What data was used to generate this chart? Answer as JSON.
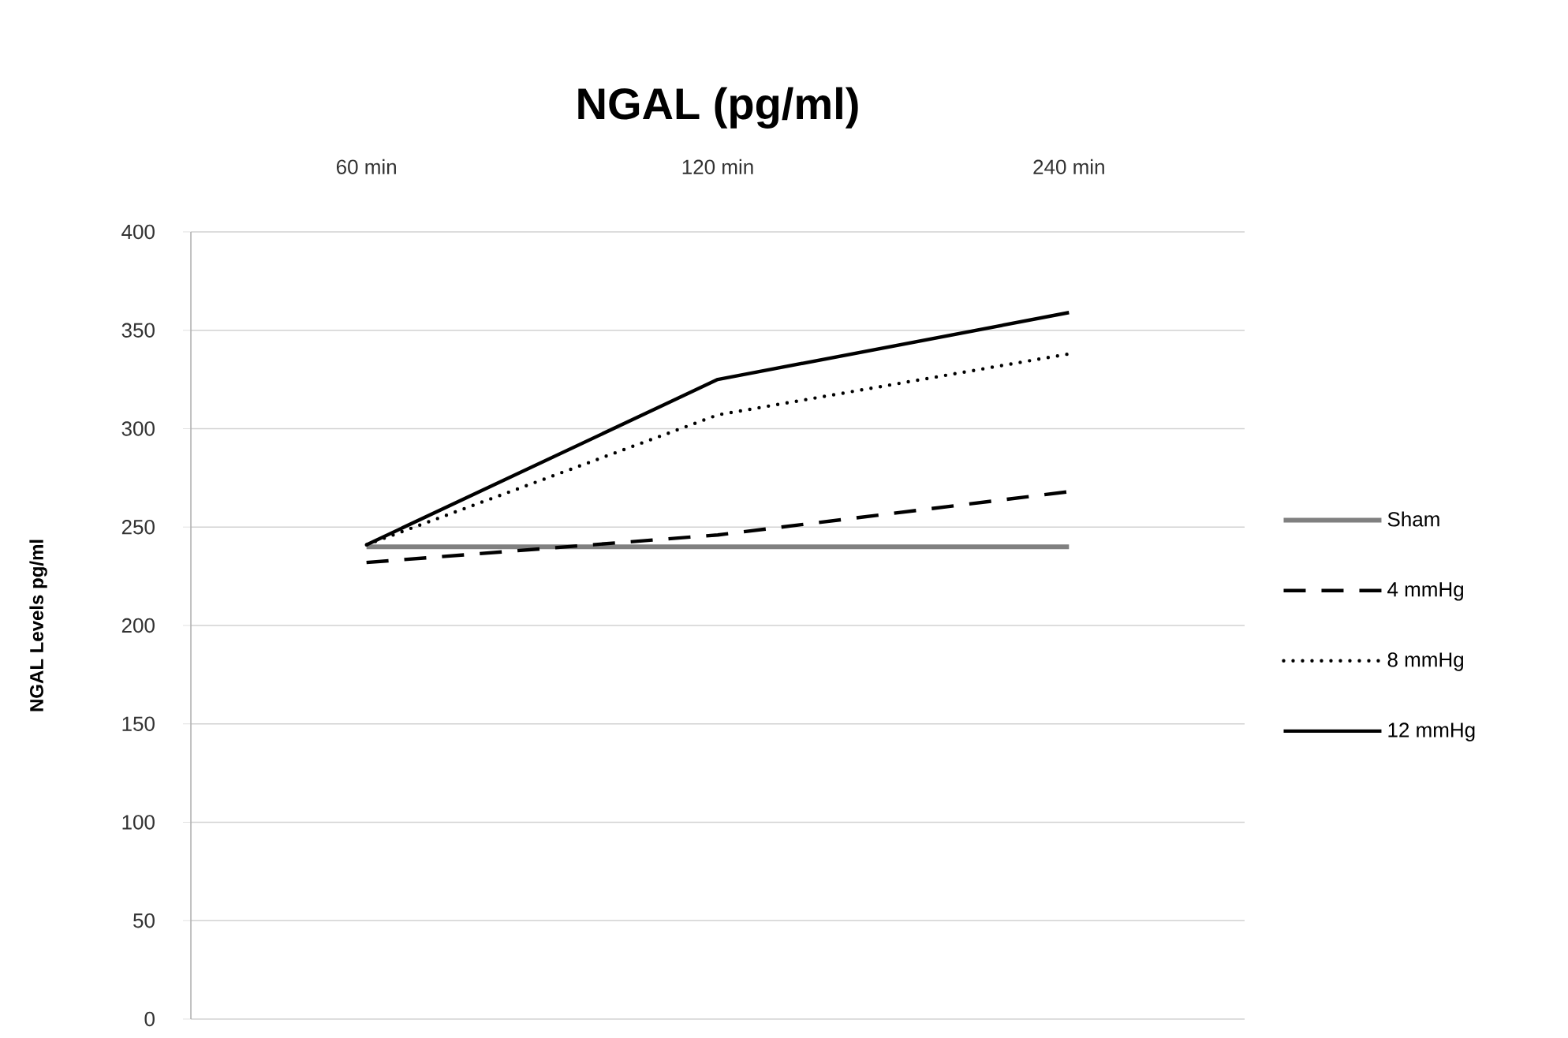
{
  "chart_data": {
    "type": "line",
    "title": "NGAL (pg/ml)",
    "ylabel": "NGAL Levels pg/ml",
    "categories": [
      "60 min",
      "120 min",
      "240 min"
    ],
    "series": [
      {
        "name": "Sham",
        "color": "#808080",
        "line_style": "solid",
        "values": [
          240,
          240,
          240
        ]
      },
      {
        "name": "4 mmHg",
        "color": "#000000",
        "line_style": "dashed",
        "values": [
          232,
          246,
          268
        ]
      },
      {
        "name": "8 mmHg",
        "color": "#000000",
        "line_style": "dotted",
        "values": [
          241,
          307,
          338
        ]
      },
      {
        "name": "12 mmHg",
        "color": "#000000",
        "line_style": "solid",
        "values": [
          241,
          325,
          359
        ]
      }
    ],
    "ylim": [
      0,
      400
    ],
    "yticks": [
      0,
      50,
      100,
      150,
      200,
      250,
      300,
      350,
      400
    ],
    "grid": "y",
    "legend": "right"
  }
}
